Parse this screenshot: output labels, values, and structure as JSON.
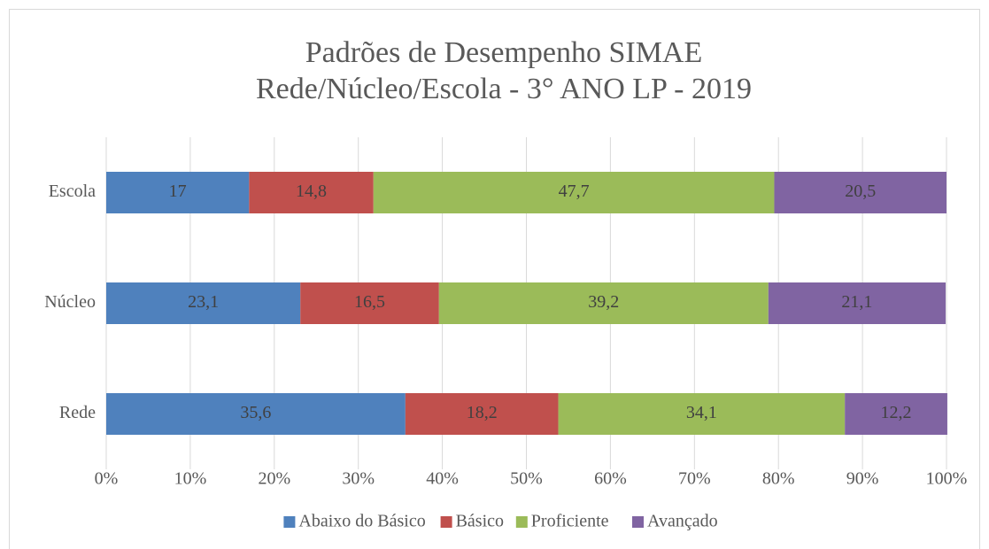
{
  "chart_data": {
    "type": "stacked_bar_horizontal",
    "title": [
      "Padrões de Desempenho SIMAE",
      "Rede/Núcleo/Escola - 3° ANO LP - 2019"
    ],
    "categories": [
      "Rede",
      "Núcleo",
      "Escola"
    ],
    "series": [
      {
        "name": "Abaixo do Básico",
        "color": "#4f81bd",
        "values": [
          35.6,
          23.1,
          17
        ],
        "value_labels": [
          "35,6",
          "23,1",
          "17"
        ]
      },
      {
        "name": "Básico",
        "color": "#c0504d",
        "values": [
          18.2,
          16.5,
          14.8
        ],
        "value_labels": [
          "18,2",
          "16,5",
          "14,8"
        ]
      },
      {
        "name": "Proficiente",
        "color": "#9bbb59",
        "values": [
          34.1,
          39.2,
          47.7
        ],
        "value_labels": [
          "34,1",
          "39,2",
          "47,7"
        ]
      },
      {
        "name": "Avançado",
        "color": "#8064a2",
        "values": [
          12.2,
          21.1,
          20.5
        ],
        "value_labels": [
          "12,2",
          "21,1",
          "20,5"
        ]
      }
    ],
    "xlim": [
      0,
      100
    ],
    "xticks": [
      {
        "value": 0,
        "label": "0%"
      },
      {
        "value": 10,
        "label": "10%"
      },
      {
        "value": 20,
        "label": "20%"
      },
      {
        "value": 30,
        "label": "30%"
      },
      {
        "value": 40,
        "label": "40%"
      },
      {
        "value": 50,
        "label": "50%"
      },
      {
        "value": 60,
        "label": "60%"
      },
      {
        "value": 70,
        "label": "70%"
      },
      {
        "value": 80,
        "label": "80%"
      },
      {
        "value": 90,
        "label": "90%"
      },
      {
        "value": 100,
        "label": "100%"
      }
    ],
    "grid": true,
    "legend": "bottom"
  }
}
